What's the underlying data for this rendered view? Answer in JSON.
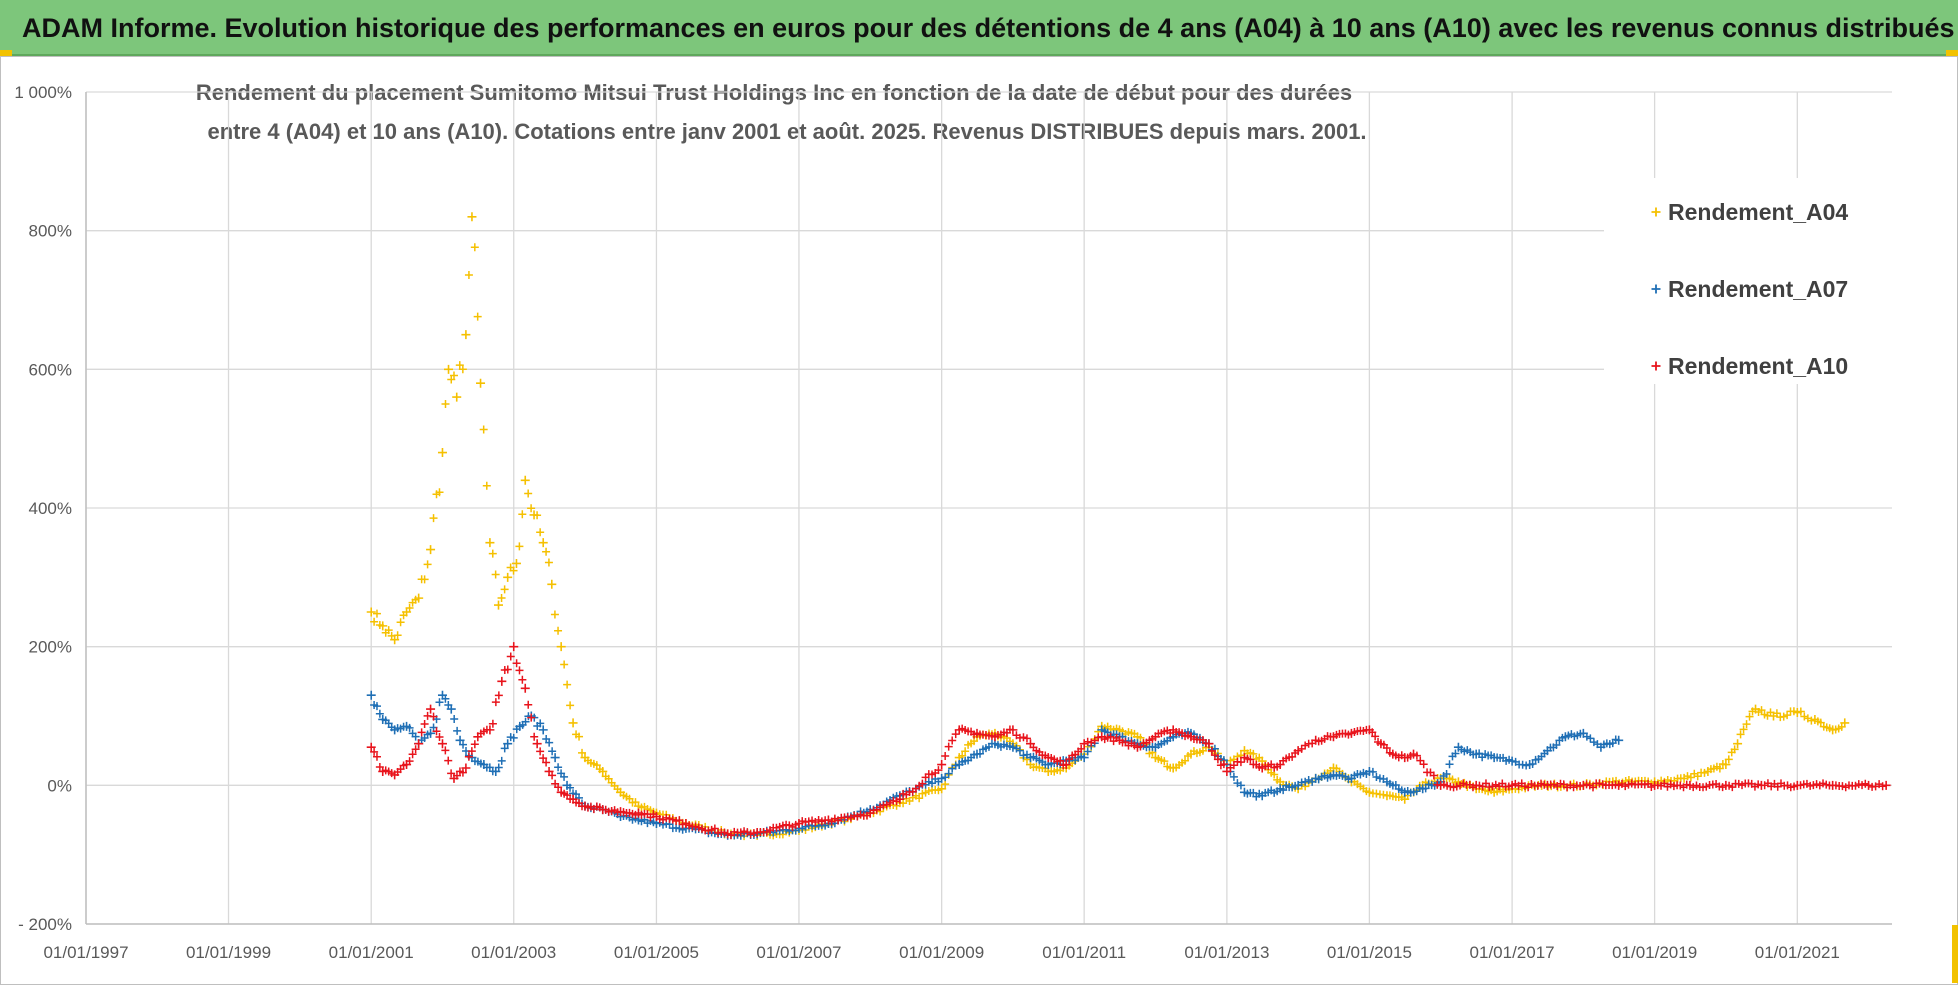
{
  "banner": {
    "title": "ADAM Informe. Evolution historique des performances en euros pour des détentions de 4 ans (A04) à 10 ans (A10) avec les revenus connus distribués"
  },
  "colors": {
    "banner_bg": "#7dc67b",
    "A04": "#f5c000",
    "A07": "#1f6fb5",
    "A10": "#e8141c",
    "grid": "#d9d9d9",
    "corner_accent": "#f2c200"
  },
  "chart_data": {
    "type": "scatter",
    "marker": "plus",
    "title_lines": [
      "Rendement du placement Sumitomo Mitsui Trust Holdings Inc en fonction de la date de début pour des durées",
      "entre 4 (A04) et 10 ans (A10). Cotations entre janv 2001 et août. 2025. Revenus DISTRIBUES depuis mars. 2001."
    ],
    "xlabel": "",
    "ylabel": "",
    "x_range": [
      "1997-01-01",
      "2022-05-01"
    ],
    "x_ticks": [
      "01/01/1997",
      "01/01/1999",
      "01/01/2001",
      "01/01/2003",
      "01/01/2005",
      "01/01/2007",
      "01/01/2009",
      "01/01/2011",
      "01/01/2013",
      "01/01/2015",
      "01/01/2017",
      "01/01/2019",
      "01/01/2021"
    ],
    "ylim": [
      -200,
      1000
    ],
    "y_ticks": [
      -200,
      0,
      200,
      400,
      600,
      800,
      1000
    ],
    "y_tick_labels": [
      "- 200%",
      "0%",
      "200%",
      "400%",
      "600%",
      "800%",
      "1 000%"
    ],
    "grid": true,
    "legend_position": "top-right",
    "series": [
      {
        "name": "Rendement_A04",
        "color": "#f5c000",
        "x": [
          "2001-01-01",
          "2001-03-01",
          "2001-05-01",
          "2001-07-01",
          "2001-09-01",
          "2001-11-01",
          "2002-01-01",
          "2002-02-01",
          "2002-03-15",
          "2002-05-01",
          "2002-06-01",
          "2002-07-15",
          "2002-09-01",
          "2002-10-15",
          "2002-12-01",
          "2003-01-15",
          "2003-03-01",
          "2003-04-15",
          "2003-06-01",
          "2003-07-15",
          "2003-09-01",
          "2003-11-01",
          "2004-01-01",
          "2004-04-01",
          "2004-07-01",
          "2004-10-01",
          "2005-01-01",
          "2005-06-01",
          "2006-01-01",
          "2006-06-01",
          "2007-01-01",
          "2007-06-01",
          "2008-01-01",
          "2008-06-01",
          "2009-01-01",
          "2009-04-01",
          "2009-07-01",
          "2009-10-01",
          "2010-01-01",
          "2010-04-01",
          "2010-07-01",
          "2010-10-01",
          "2011-01-01",
          "2011-04-01",
          "2011-07-01",
          "2011-10-01",
          "2012-01-01",
          "2012-04-01",
          "2012-07-01",
          "2012-10-01",
          "2013-01-01",
          "2013-04-01",
          "2013-07-01",
          "2013-10-01",
          "2014-01-01",
          "2014-04-01",
          "2014-07-01",
          "2014-10-01",
          "2015-01-01",
          "2015-04-01",
          "2015-07-01",
          "2015-10-01",
          "2016-01-01",
          "2016-04-01",
          "2016-07-01",
          "2016-10-01",
          "2017-01-01",
          "2017-06-01",
          "2018-01-01",
          "2018-06-01",
          "2019-01-01",
          "2019-06-01",
          "2019-10-01",
          "2020-01-01",
          "2020-03-01",
          "2020-06-01",
          "2020-09-01",
          "2021-01-01",
          "2021-04-01",
          "2021-07-01",
          "2021-09-01"
        ],
        "y": [
          250,
          230,
          210,
          250,
          270,
          340,
          480,
          600,
          560,
          650,
          820,
          580,
          350,
          260,
          300,
          320,
          440,
          390,
          350,
          290,
          200,
          90,
          40,
          20,
          -10,
          -30,
          -40,
          -55,
          -70,
          -72,
          -65,
          -55,
          -40,
          -25,
          -5,
          40,
          70,
          75,
          60,
          30,
          20,
          25,
          45,
          85,
          80,
          70,
          40,
          25,
          45,
          55,
          30,
          50,
          35,
          5,
          -5,
          10,
          25,
          5,
          -10,
          -15,
          -20,
          0,
          10,
          5,
          -5,
          -10,
          -5,
          0,
          0,
          5,
          5,
          10,
          20,
          30,
          60,
          110,
          100,
          105,
          95,
          80,
          90
        ]
      },
      {
        "name": "Rendement_A07",
        "color": "#1f6fb5",
        "x": [
          "2001-01-01",
          "2001-03-01",
          "2001-05-01",
          "2001-07-01",
          "2001-09-01",
          "2001-11-01",
          "2002-01-01",
          "2002-02-15",
          "2002-04-01",
          "2002-06-01",
          "2002-08-01",
          "2002-10-01",
          "2002-12-01",
          "2003-02-01",
          "2003-04-01",
          "2003-06-01",
          "2003-08-01",
          "2003-10-01",
          "2004-01-01",
          "2004-04-01",
          "2004-07-01",
          "2004-10-01",
          "2005-01-01",
          "2005-06-01",
          "2006-01-01",
          "2006-06-01",
          "2007-01-01",
          "2007-06-01",
          "2008-01-01",
          "2008-06-01",
          "2009-01-01",
          "2009-04-01",
          "2009-07-01",
          "2009-10-01",
          "2010-01-01",
          "2010-04-01",
          "2010-07-01",
          "2010-10-01",
          "2011-01-01",
          "2011-04-01",
          "2011-07-01",
          "2011-10-01",
          "2012-01-01",
          "2012-04-01",
          "2012-07-01",
          "2012-10-01",
          "2013-01-01",
          "2013-04-01",
          "2013-07-01",
          "2013-10-01",
          "2014-01-01",
          "2014-04-01",
          "2014-07-01",
          "2014-10-01",
          "2015-01-01",
          "2015-04-01",
          "2015-07-01",
          "2015-10-01",
          "2016-01-01",
          "2016-04-01",
          "2016-07-01",
          "2016-10-01",
          "2017-01-01",
          "2017-04-01",
          "2017-07-01",
          "2017-10-01",
          "2018-01-01",
          "2018-04-01",
          "2018-07-01"
        ],
        "y": [
          130,
          95,
          80,
          85,
          60,
          75,
          130,
          110,
          65,
          40,
          30,
          20,
          60,
          85,
          100,
          80,
          40,
          0,
          -30,
          -35,
          -45,
          -50,
          -55,
          -62,
          -72,
          -70,
          -62,
          -55,
          -35,
          -15,
          10,
          30,
          45,
          60,
          55,
          40,
          30,
          35,
          40,
          80,
          70,
          60,
          55,
          70,
          75,
          60,
          30,
          -10,
          -15,
          -5,
          0,
          10,
          15,
          10,
          20,
          5,
          -10,
          -5,
          5,
          55,
          45,
          40,
          35,
          30,
          50,
          70,
          75,
          55,
          65
        ]
      },
      {
        "name": "Rendement_A10",
        "color": "#e8141c",
        "x": [
          "2001-01-01",
          "2001-03-01",
          "2001-05-01",
          "2001-07-01",
          "2001-09-01",
          "2001-11-01",
          "2002-01-01",
          "2002-03-01",
          "2002-05-01",
          "2002-07-01",
          "2002-09-01",
          "2002-11-01",
          "2003-01-01",
          "2003-03-01",
          "2003-05-01",
          "2003-07-01",
          "2003-09-01",
          "2003-11-01",
          "2004-01-01",
          "2004-04-01",
          "2004-07-01",
          "2004-10-01",
          "2005-01-01",
          "2005-06-01",
          "2006-01-01",
          "2006-06-01",
          "2007-01-01",
          "2007-06-01",
          "2008-01-01",
          "2008-06-01",
          "2009-01-01",
          "2009-04-01",
          "2009-07-01",
          "2009-10-01",
          "2010-01-01",
          "2010-04-01",
          "2010-07-01",
          "2010-10-01",
          "2011-01-01",
          "2011-04-01",
          "2011-07-01",
          "2011-10-01",
          "2012-01-01",
          "2012-04-01",
          "2012-07-01",
          "2012-10-01",
          "2013-01-01",
          "2013-04-01",
          "2013-07-01",
          "2013-10-01",
          "2014-01-01",
          "2014-04-01",
          "2014-07-01",
          "2014-10-01",
          "2015-01-01",
          "2015-03-01",
          "2015-05-01",
          "2015-07-01",
          "2015-08-15",
          "2016-01-01",
          "2016-07-01",
          "2017-01-01",
          "2017-07-01",
          "2018-01-01",
          "2018-07-01",
          "2019-01-01",
          "2019-07-01",
          "2020-01-01",
          "2020-07-01",
          "2021-01-01",
          "2021-07-01",
          "2022-01-01",
          "2022-04-01"
        ],
        "y": [
          55,
          20,
          15,
          30,
          60,
          110,
          60,
          10,
          25,
          70,
          80,
          150,
          200,
          140,
          60,
          20,
          -10,
          -20,
          -30,
          -35,
          -38,
          -40,
          -45,
          -55,
          -70,
          -68,
          -55,
          -50,
          -40,
          -20,
          30,
          80,
          75,
          70,
          80,
          60,
          40,
          30,
          60,
          70,
          65,
          55,
          70,
          80,
          70,
          60,
          20,
          40,
          25,
          30,
          50,
          65,
          70,
          75,
          80,
          60,
          45,
          40,
          45,
          0,
          0,
          0,
          0,
          0,
          0,
          0,
          0,
          0,
          0,
          0,
          0,
          0,
          0
        ]
      }
    ]
  }
}
